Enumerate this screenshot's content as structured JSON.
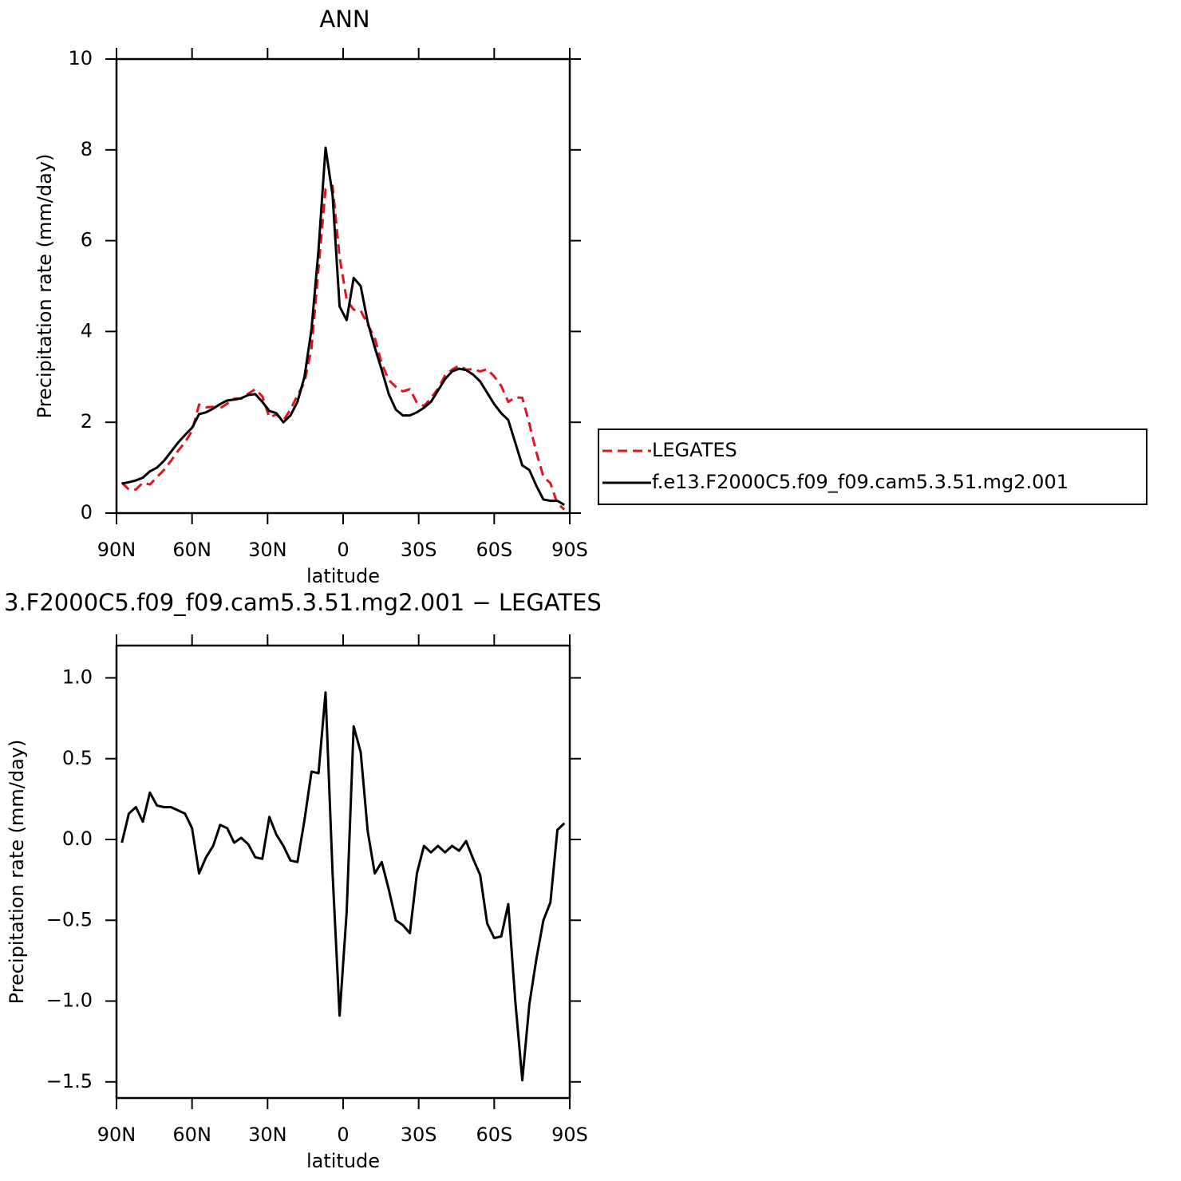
{
  "chart_data": [
    {
      "type": "line",
      "title": "ANN",
      "xlabel": "latitude",
      "ylabel": "Precipitation rate (mm/day)",
      "x": [
        87.86,
        85.1,
        82.31,
        79.53,
        76.74,
        73.95,
        71.16,
        68.37,
        65.58,
        62.79,
        60.0,
        57.21,
        54.42,
        51.63,
        48.84,
        46.05,
        43.26,
        40.47,
        37.67,
        34.88,
        32.09,
        29.3,
        26.51,
        23.72,
        20.93,
        18.14,
        15.35,
        12.56,
        9.77,
        6.98,
        4.19,
        1.4,
        -1.4,
        -4.19,
        -6.98,
        -9.77,
        -12.56,
        -15.35,
        -18.14,
        -20.93,
        -23.72,
        -26.51,
        -29.3,
        -32.09,
        -34.88,
        -37.67,
        -40.47,
        -43.26,
        -46.05,
        -48.84,
        -51.63,
        -54.42,
        -57.21,
        -60.0,
        -62.79,
        -65.58,
        -68.37,
        -71.16,
        -73.95,
        -76.74,
        -79.53,
        -82.31,
        -85.1,
        -87.86
      ],
      "xlim": [
        90,
        -90
      ],
      "xticks": [
        {
          "value": 90,
          "label": "90N"
        },
        {
          "value": 60,
          "label": "60N"
        },
        {
          "value": 30,
          "label": "30N"
        },
        0,
        {
          "value": -30,
          "label": "30S"
        },
        {
          "value": -60,
          "label": "60S"
        },
        {
          "value": -90,
          "label": "90S"
        }
      ],
      "ylim": [
        0,
        10
      ],
      "yticks": [
        0,
        2,
        4,
        6,
        8,
        10
      ],
      "legend": "right",
      "series": [
        {
          "name": "LEGATES",
          "color": "#e0141e",
          "dash": "dashed",
          "values": [
            0.67,
            0.52,
            0.52,
            0.67,
            0.63,
            0.79,
            0.95,
            1.15,
            1.37,
            1.56,
            1.81,
            2.39,
            2.33,
            2.34,
            2.31,
            2.41,
            2.52,
            2.52,
            2.63,
            2.73,
            2.57,
            2.11,
            2.17,
            2.04,
            2.28,
            2.59,
            2.88,
            3.63,
            5.39,
            7.14,
            7.21,
            5.64,
            4.7,
            4.48,
            4.46,
            4.15,
            3.86,
            3.29,
            2.93,
            2.78,
            2.68,
            2.73,
            2.43,
            2.36,
            2.53,
            2.74,
            3.03,
            3.16,
            3.25,
            3.16,
            3.17,
            3.12,
            3.17,
            3.01,
            2.8,
            2.45,
            2.55,
            2.54,
            1.97,
            1.34,
            0.8,
            0.66,
            0.21,
            0.08
          ]
        },
        {
          "name": "f.e13.F2000C5.f09_f09.cam5.3.51.mg2.001",
          "color": "#000000",
          "dash": "solid",
          "values": [
            0.65,
            0.68,
            0.72,
            0.78,
            0.92,
            1.0,
            1.15,
            1.35,
            1.55,
            1.72,
            1.88,
            2.18,
            2.22,
            2.3,
            2.4,
            2.48,
            2.5,
            2.53,
            2.6,
            2.62,
            2.45,
            2.25,
            2.2,
            2.0,
            2.15,
            2.45,
            3.0,
            4.05,
            5.8,
            8.05,
            7.0,
            4.55,
            4.25,
            5.18,
            5.0,
            4.2,
            3.65,
            3.15,
            2.62,
            2.28,
            2.15,
            2.15,
            2.22,
            2.32,
            2.45,
            2.7,
            2.95,
            3.12,
            3.18,
            3.15,
            3.05,
            2.9,
            2.65,
            2.4,
            2.2,
            2.05,
            1.55,
            1.05,
            0.95,
            0.6,
            0.3,
            0.27,
            0.27,
            0.18
          ]
        }
      ]
    },
    {
      "type": "line",
      "title": "3.F2000C5.f09_f09.cam5.3.51.mg2.001 − LEGATES",
      "xlabel": "latitude",
      "ylabel": "Precipitation rate (mm/day)",
      "x": [
        87.86,
        85.1,
        82.31,
        79.53,
        76.74,
        73.95,
        71.16,
        68.37,
        65.58,
        62.79,
        60.0,
        57.21,
        54.42,
        51.63,
        48.84,
        46.05,
        43.26,
        40.47,
        37.67,
        34.88,
        32.09,
        29.3,
        26.51,
        23.72,
        20.93,
        18.14,
        15.35,
        12.56,
        9.77,
        6.98,
        4.19,
        1.4,
        -1.4,
        -4.19,
        -6.98,
        -9.77,
        -12.56,
        -15.35,
        -18.14,
        -20.93,
        -23.72,
        -26.51,
        -29.3,
        -32.09,
        -34.88,
        -37.67,
        -40.47,
        -43.26,
        -46.05,
        -48.84,
        -51.63,
        -54.42,
        -57.21,
        -60.0,
        -62.79,
        -65.58,
        -68.37,
        -71.16,
        -73.95,
        -76.74,
        -79.53,
        -82.31,
        -85.1,
        -87.86
      ],
      "xlim": [
        90,
        -90
      ],
      "xticks": [
        {
          "value": 90,
          "label": "90N"
        },
        {
          "value": 60,
          "label": "60N"
        },
        {
          "value": 30,
          "label": "30N"
        },
        0,
        {
          "value": -30,
          "label": "30S"
        },
        {
          "value": -60,
          "label": "60S"
        },
        {
          "value": -90,
          "label": "90S"
        }
      ],
      "ylim": [
        -1.6,
        1.2
      ],
      "yticks": [
        {
          "value": 1.0,
          "label": "1.0"
        },
        0.5,
        {
          "value": 0.0,
          "label": "0.0"
        },
        {
          "value": -0.5,
          "label": "−0.5"
        },
        {
          "value": -1.0,
          "label": "−1.0"
        },
        {
          "value": -1.5,
          "label": "−1.5"
        }
      ],
      "series": [
        {
          "color": "#000000",
          "dash": "solid",
          "values": [
            -0.02,
            0.16,
            0.2,
            0.11,
            0.29,
            0.21,
            0.2,
            0.2,
            0.18,
            0.16,
            0.07,
            -0.21,
            -0.11,
            -0.04,
            0.09,
            0.07,
            -0.02,
            0.01,
            -0.03,
            -0.11,
            -0.12,
            0.14,
            0.03,
            -0.04,
            -0.13,
            -0.14,
            0.12,
            0.42,
            0.41,
            0.91,
            -0.21,
            -1.09,
            -0.45,
            0.7,
            0.54,
            0.05,
            -0.21,
            -0.14,
            -0.31,
            -0.5,
            -0.53,
            -0.58,
            -0.21,
            -0.04,
            -0.08,
            -0.04,
            -0.08,
            -0.04,
            -0.07,
            -0.01,
            -0.12,
            -0.22,
            -0.52,
            -0.61,
            -0.6,
            -0.4,
            -1.0,
            -1.49,
            -1.02,
            -0.74,
            -0.5,
            -0.39,
            0.06,
            0.1
          ]
        }
      ]
    }
  ]
}
